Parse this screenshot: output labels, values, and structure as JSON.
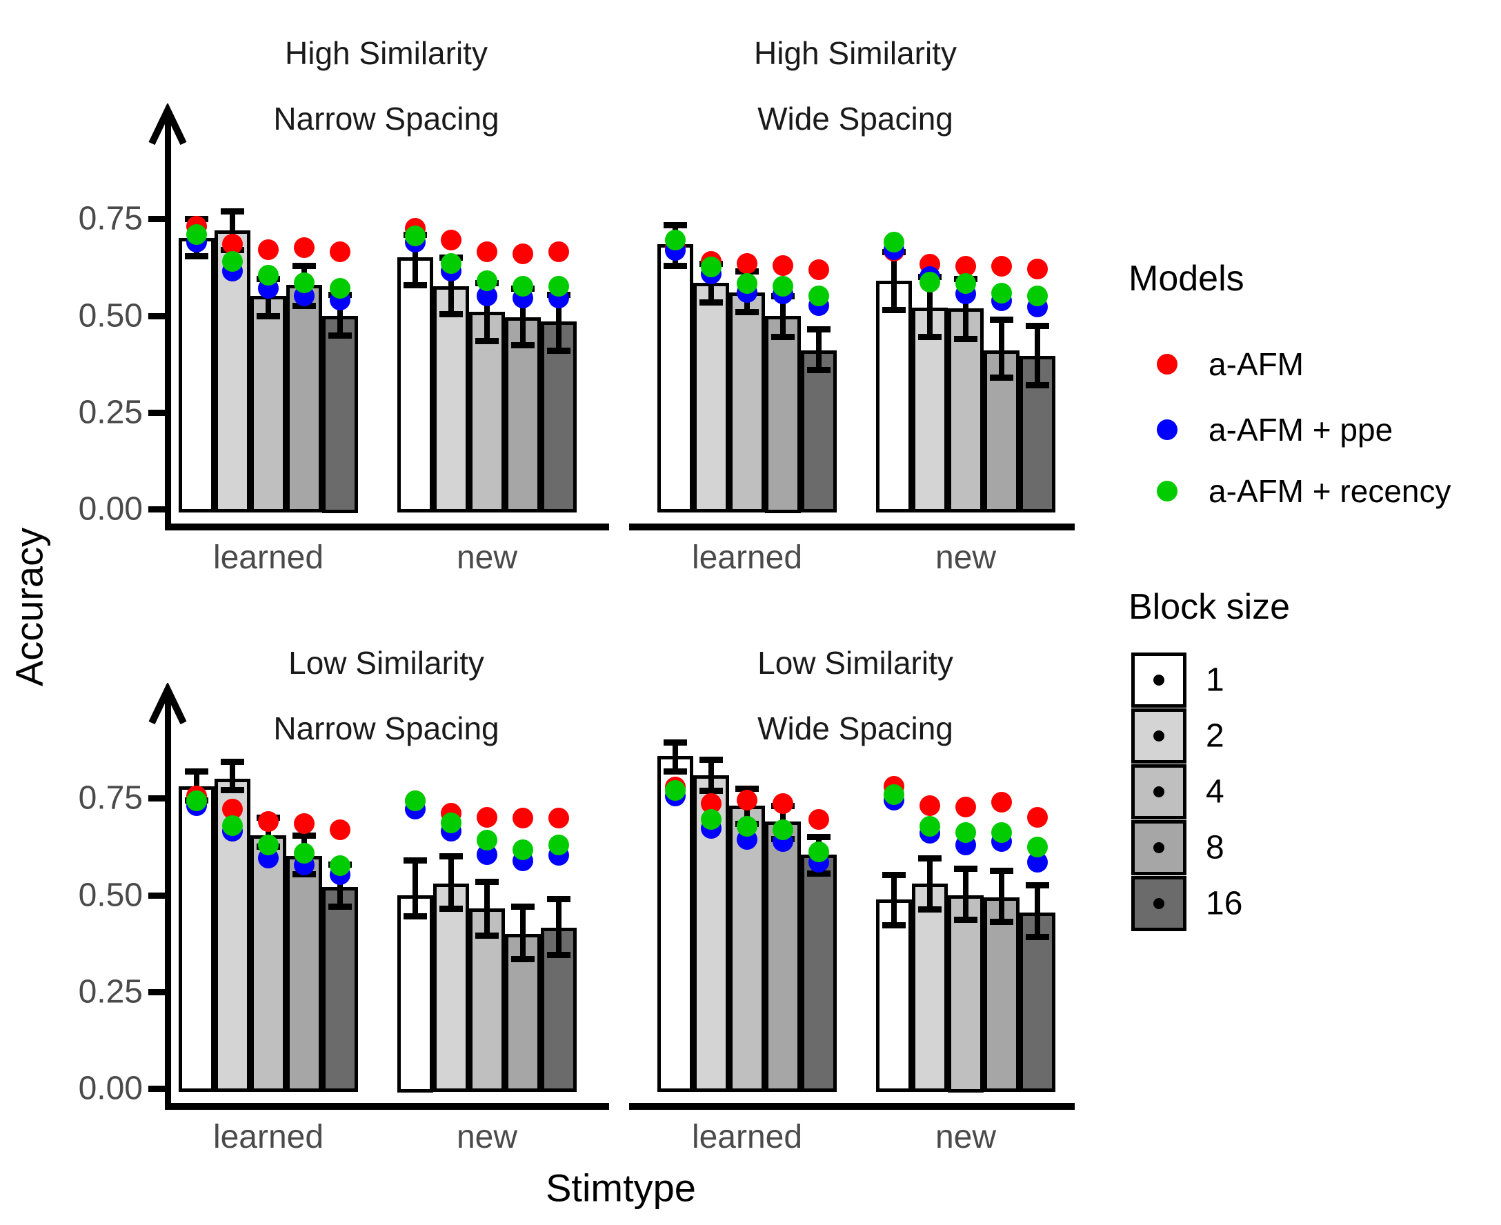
{
  "chart_data": {
    "type": "bar",
    "title": "",
    "ylabel": "Accuracy",
    "xlabel": "Stimtype",
    "grid": false,
    "legend_position": "right",
    "y_axis": {
      "tick_labels": [
        "0.75",
        "0.50",
        "0.25",
        "0.00"
      ],
      "tick_values": [
        0.75,
        0.5,
        0.25,
        0.0
      ],
      "range": [
        0,
        0.9
      ]
    },
    "x_categories": [
      "learned",
      "new"
    ],
    "block_sizes": [
      1,
      2,
      4,
      8,
      16
    ],
    "legend_models": {
      "title": "Models",
      "items": [
        {
          "key": "a_afm",
          "label": "a-AFM",
          "color": "#ff0000"
        },
        {
          "key": "a_afm_ppe",
          "label": "a-AFM + ppe",
          "color": "#0000ff"
        },
        {
          "key": "a_afm_recency",
          "label": "a-AFM + recency",
          "color": "#00cc00"
        }
      ]
    },
    "legend_block_size": {
      "title": "Block size",
      "items": [
        {
          "label": "1",
          "fill": "#ffffff"
        },
        {
          "label": "2",
          "fill": "#d4d4d4"
        },
        {
          "label": "4",
          "fill": "#bfbfbf"
        },
        {
          "label": "8",
          "fill": "#a6a6a6"
        },
        {
          "label": "16",
          "fill": "#6b6b6b"
        }
      ]
    },
    "panels": [
      {
        "id": "high-narrow",
        "row": 0,
        "col": 0,
        "title": [
          "High Similarity",
          "Narrow Spacing"
        ],
        "groups": [
          {
            "category": "learned",
            "bars": [
              {
                "block": 1,
                "mean": 0.7,
                "err": [
                  0.655,
                  0.75
                ],
                "models": {
                  "a_afm": 0.73,
                  "a_afm_ppe": 0.69,
                  "a_afm_recency": 0.71
                }
              },
              {
                "block": 2,
                "mean": 0.72,
                "err": [
                  0.67,
                  0.77
                ],
                "models": {
                  "a_afm": 0.685,
                  "a_afm_ppe": 0.615,
                  "a_afm_recency": 0.64
                }
              },
              {
                "block": 4,
                "mean": 0.55,
                "err": [
                  0.5,
                  0.595
                ],
                "models": {
                  "a_afm": 0.67,
                  "a_afm_ppe": 0.57,
                  "a_afm_recency": 0.605
                }
              },
              {
                "block": 8,
                "mean": 0.58,
                "err": [
                  0.525,
                  0.63
                ],
                "models": {
                  "a_afm": 0.675,
                  "a_afm_ppe": 0.55,
                  "a_afm_recency": 0.585
                }
              },
              {
                "block": 16,
                "mean": 0.5,
                "err": [
                  0.45,
                  0.555
                ],
                "models": {
                  "a_afm": 0.665,
                  "a_afm_ppe": 0.54,
                  "a_afm_recency": 0.57
                }
              }
            ]
          },
          {
            "category": "new",
            "bars": [
              {
                "block": 1,
                "mean": 0.65,
                "err": [
                  0.58,
                  0.71
                ],
                "models": {
                  "a_afm": 0.725,
                  "a_afm_ppe": 0.69,
                  "a_afm_recency": 0.705
                }
              },
              {
                "block": 2,
                "mean": 0.575,
                "err": [
                  0.505,
                  0.65
                ],
                "models": {
                  "a_afm": 0.695,
                  "a_afm_ppe": 0.615,
                  "a_afm_recency": 0.635
                }
              },
              {
                "block": 4,
                "mean": 0.51,
                "err": [
                  0.435,
                  0.585
                ],
                "models": {
                  "a_afm": 0.665,
                  "a_afm_ppe": 0.55,
                  "a_afm_recency": 0.59
                }
              },
              {
                "block": 8,
                "mean": 0.495,
                "err": [
                  0.425,
                  0.57
                ],
                "models": {
                  "a_afm": 0.66,
                  "a_afm_ppe": 0.545,
                  "a_afm_recency": 0.575
                }
              },
              {
                "block": 16,
                "mean": 0.485,
                "err": [
                  0.41,
                  0.555
                ],
                "models": {
                  "a_afm": 0.665,
                  "a_afm_ppe": 0.545,
                  "a_afm_recency": 0.575
                }
              }
            ]
          }
        ]
      },
      {
        "id": "high-wide",
        "row": 0,
        "col": 1,
        "title": [
          "High Similarity",
          "Wide Spacing"
        ],
        "groups": [
          {
            "category": "learned",
            "bars": [
              {
                "block": 1,
                "mean": 0.685,
                "err": [
                  0.63,
                  0.735
                ],
                "models": {
                  "a_afm": 0.675,
                  "a_afm_ppe": 0.668,
                  "a_afm_recency": 0.695
                }
              },
              {
                "block": 2,
                "mean": 0.585,
                "err": [
                  0.535,
                  0.635
                ],
                "models": {
                  "a_afm": 0.64,
                  "a_afm_ppe": 0.608,
                  "a_afm_recency": 0.625
                }
              },
              {
                "block": 4,
                "mean": 0.56,
                "err": [
                  0.51,
                  0.615
                ],
                "models": {
                  "a_afm": 0.635,
                  "a_afm_ppe": 0.56,
                  "a_afm_recency": 0.582
                }
              },
              {
                "block": 8,
                "mean": 0.5,
                "err": [
                  0.445,
                  0.55
                ],
                "models": {
                  "a_afm": 0.63,
                  "a_afm_ppe": 0.556,
                  "a_afm_recency": 0.575
                }
              },
              {
                "block": 16,
                "mean": 0.41,
                "err": [
                  0.36,
                  0.465
                ],
                "models": {
                  "a_afm": 0.618,
                  "a_afm_ppe": 0.525,
                  "a_afm_recency": 0.55
                }
              }
            ]
          },
          {
            "category": "new",
            "bars": [
              {
                "block": 1,
                "mean": 0.59,
                "err": [
                  0.515,
                  0.665
                ],
                "models": {
                  "a_afm": 0.667,
                  "a_afm_ppe": 0.67,
                  "a_afm_recency": 0.69
                }
              },
              {
                "block": 2,
                "mean": 0.52,
                "err": [
                  0.445,
                  0.6
                ],
                "models": {
                  "a_afm": 0.632,
                  "a_afm_ppe": 0.601,
                  "a_afm_recency": 0.586
                }
              },
              {
                "block": 4,
                "mean": 0.518,
                "err": [
                  0.44,
                  0.595
                ],
                "models": {
                  "a_afm": 0.627,
                  "a_afm_ppe": 0.556,
                  "a_afm_recency": 0.582
                }
              },
              {
                "block": 8,
                "mean": 0.41,
                "err": [
                  0.34,
                  0.49
                ],
                "models": {
                  "a_afm": 0.628,
                  "a_afm_ppe": 0.538,
                  "a_afm_recency": 0.558
                }
              },
              {
                "block": 16,
                "mean": 0.395,
                "err": [
                  0.32,
                  0.475
                ],
                "models": {
                  "a_afm": 0.62,
                  "a_afm_ppe": 0.522,
                  "a_afm_recency": 0.55
                }
              }
            ]
          }
        ]
      },
      {
        "id": "low-narrow",
        "row": 1,
        "col": 0,
        "title": [
          "Low Similarity",
          "Narrow Spacing"
        ],
        "groups": [
          {
            "category": "learned",
            "bars": [
              {
                "block": 1,
                "mean": 0.78,
                "err": [
                  0.745,
                  0.82
                ],
                "models": {
                  "a_afm": 0.755,
                  "a_afm_ppe": 0.73,
                  "a_afm_recency": 0.744
                }
              },
              {
                "block": 2,
                "mean": 0.8,
                "err": [
                  0.772,
                  0.845
                ],
                "models": {
                  "a_afm": 0.722,
                  "a_afm_ppe": 0.664,
                  "a_afm_recency": 0.679
                }
              },
              {
                "block": 4,
                "mean": 0.655,
                "err": [
                  0.625,
                  0.7
                ],
                "models": {
                  "a_afm": 0.69,
                  "a_afm_ppe": 0.596,
                  "a_afm_recency": 0.63
                }
              },
              {
                "block": 8,
                "mean": 0.6,
                "err": [
                  0.555,
                  0.655
                ],
                "models": {
                  "a_afm": 0.685,
                  "a_afm_ppe": 0.578,
                  "a_afm_recency": 0.607
                }
              },
              {
                "block": 16,
                "mean": 0.52,
                "err": [
                  0.47,
                  0.58
                ],
                "models": {
                  "a_afm": 0.668,
                  "a_afm_ppe": 0.553,
                  "a_afm_recency": 0.576
                }
              }
            ]
          },
          {
            "category": "new",
            "bars": [
              {
                "block": 1,
                "mean": 0.5,
                "err": [
                  0.445,
                  0.59
                ],
                "models": {
                  "a_afm": 0.744,
                  "a_afm_ppe": 0.722,
                  "a_afm_recency": 0.744
                }
              },
              {
                "block": 2,
                "mean": 0.53,
                "err": [
                  0.465,
                  0.6
                ],
                "models": {
                  "a_afm": 0.712,
                  "a_afm_ppe": 0.664,
                  "a_afm_recency": 0.686
                }
              },
              {
                "block": 4,
                "mean": 0.465,
                "err": [
                  0.395,
                  0.535
                ],
                "models": {
                  "a_afm": 0.7,
                  "a_afm_ppe": 0.605,
                  "a_afm_recency": 0.641
                }
              },
              {
                "block": 8,
                "mean": 0.4,
                "err": [
                  0.335,
                  0.47
                ],
                "models": {
                  "a_afm": 0.698,
                  "a_afm_ppe": 0.588,
                  "a_afm_recency": 0.616
                }
              },
              {
                "block": 16,
                "mean": 0.415,
                "err": [
                  0.345,
                  0.49
                ],
                "models": {
                  "a_afm": 0.698,
                  "a_afm_ppe": 0.602,
                  "a_afm_recency": 0.629
                }
              }
            ]
          }
        ]
      },
      {
        "id": "low-wide",
        "row": 1,
        "col": 1,
        "title": [
          "Low Similarity",
          "Wide Spacing"
        ],
        "groups": [
          {
            "category": "learned",
            "bars": [
              {
                "block": 1,
                "mean": 0.86,
                "err": [
                  0.82,
                  0.895
                ],
                "models": {
                  "a_afm": 0.779,
                  "a_afm_ppe": 0.756,
                  "a_afm_recency": 0.77
                }
              },
              {
                "block": 2,
                "mean": 0.81,
                "err": [
                  0.77,
                  0.85
                ],
                "models": {
                  "a_afm": 0.736,
                  "a_afm_ppe": 0.672,
                  "a_afm_recency": 0.696
                }
              },
              {
                "block": 4,
                "mean": 0.73,
                "err": [
                  0.685,
                  0.775
                ],
                "models": {
                  "a_afm": 0.745,
                  "a_afm_ppe": 0.643,
                  "a_afm_recency": 0.677
                }
              },
              {
                "block": 8,
                "mean": 0.69,
                "err": [
                  0.645,
                  0.73
                ],
                "models": {
                  "a_afm": 0.736,
                  "a_afm_ppe": 0.638,
                  "a_afm_recency": 0.668
                }
              },
              {
                "block": 16,
                "mean": 0.605,
                "err": [
                  0.556,
                  0.65
                ],
                "models": {
                  "a_afm": 0.696,
                  "a_afm_ppe": 0.584,
                  "a_afm_recency": 0.611
                }
              }
            ]
          },
          {
            "category": "new",
            "bars": [
              {
                "block": 1,
                "mean": 0.488,
                "err": [
                  0.423,
                  0.552
                ],
                "models": {
                  "a_afm": 0.78,
                  "a_afm_ppe": 0.745,
                  "a_afm_recency": 0.759
                }
              },
              {
                "block": 2,
                "mean": 0.529,
                "err": [
                  0.464,
                  0.596
                ],
                "models": {
                  "a_afm": 0.73,
                  "a_afm_ppe": 0.659,
                  "a_afm_recency": 0.677
                }
              },
              {
                "block": 4,
                "mean": 0.5,
                "err": [
                  0.436,
                  0.568
                ],
                "models": {
                  "a_afm": 0.727,
                  "a_afm_ppe": 0.629,
                  "a_afm_recency": 0.661
                }
              },
              {
                "block": 8,
                "mean": 0.493,
                "err": [
                  0.432,
                  0.564
                ],
                "models": {
                  "a_afm": 0.739,
                  "a_afm_ppe": 0.638,
                  "a_afm_recency": 0.661
                }
              },
              {
                "block": 16,
                "mean": 0.455,
                "err": [
                  0.393,
                  0.525
                ],
                "models": {
                  "a_afm": 0.7,
                  "a_afm_ppe": 0.584,
                  "a_afm_recency": 0.623
                }
              }
            ]
          }
        ]
      }
    ],
    "colors": {
      "axis": "#000000",
      "tick_label": "#4a4a4a",
      "group_label": "#4a4a4a",
      "facet_title": "#1a1a1a"
    }
  }
}
